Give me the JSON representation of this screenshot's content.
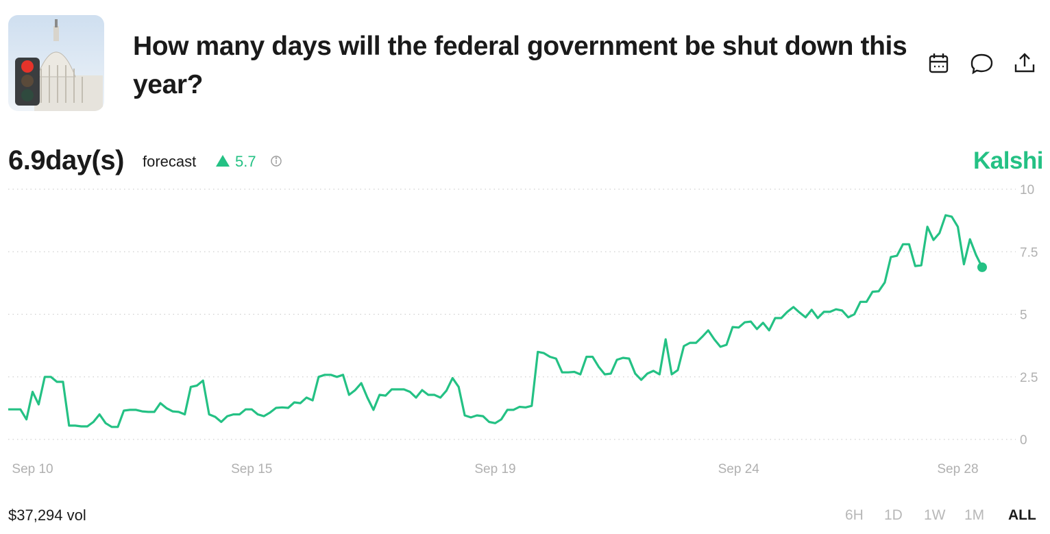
{
  "header": {
    "title": "How many days will the federal government be shut down this year?"
  },
  "forecast": {
    "value": "6.9day(s)",
    "label": "forecast",
    "change": 5.7
  },
  "brand": "Kalshi",
  "chart_data": {
    "type": "line",
    "color": "#24c184",
    "grid": true,
    "ylim": [
      0,
      10
    ],
    "yticks": [
      0,
      2.5,
      5,
      7.5,
      10
    ],
    "categories": [
      null,
      null,
      null,
      null,
      "Sep 10",
      null,
      null,
      null,
      null,
      null,
      null,
      null,
      null,
      null,
      null,
      null,
      null,
      null,
      null,
      null,
      null,
      null,
      null,
      null,
      null,
      null,
      null,
      null,
      null,
      null,
      null,
      null,
      null,
      null,
      null,
      null,
      null,
      null,
      null,
      null,
      "Sep 15",
      null,
      null,
      null,
      null,
      null,
      null,
      null,
      null,
      null,
      null,
      null,
      null,
      null,
      null,
      null,
      null,
      null,
      null,
      null,
      null,
      null,
      null,
      null,
      null,
      null,
      null,
      null,
      null,
      null,
      null,
      null,
      null,
      null,
      null,
      null,
      null,
      null,
      null,
      null,
      "Sep 19",
      null,
      null,
      null,
      null,
      null,
      null,
      null,
      null,
      null,
      null,
      null,
      null,
      null,
      null,
      null,
      null,
      null,
      null,
      null,
      null,
      null,
      null,
      null,
      null,
      null,
      null,
      null,
      null,
      null,
      null,
      null,
      null,
      null,
      null,
      null,
      null,
      null,
      null,
      null,
      "Sep 24",
      null,
      null,
      null,
      null,
      null,
      null,
      null,
      null,
      null,
      null,
      null,
      null,
      null,
      null,
      null,
      null,
      null,
      null,
      null,
      null,
      null,
      null,
      null,
      null,
      null,
      null,
      null,
      null,
      null,
      null,
      null,
      null,
      null,
      null,
      null,
      "Sep 28",
      null,
      null,
      null,
      null
    ],
    "values": [
      1.2,
      1.2,
      1.2,
      0.8,
      1.9,
      1.4,
      2.5,
      2.5,
      2.3,
      2.3,
      0.55,
      0.55,
      0.52,
      0.52,
      0.7,
      1.0,
      0.65,
      0.5,
      0.5,
      1.15,
      1.18,
      1.18,
      1.12,
      1.1,
      1.1,
      1.45,
      1.25,
      1.12,
      1.1,
      1.0,
      2.1,
      2.15,
      2.35,
      1.0,
      0.9,
      0.7,
      0.93,
      1.0,
      1.0,
      1.2,
      1.2,
      1.0,
      0.93,
      1.07,
      1.26,
      1.28,
      1.26,
      1.48,
      1.45,
      1.67,
      1.56,
      2.5,
      2.58,
      2.58,
      2.5,
      2.58,
      1.78,
      1.97,
      2.25,
      1.67,
      1.18,
      1.78,
      1.75,
      2.0,
      2.0,
      2.0,
      1.9,
      1.67,
      1.97,
      1.78,
      1.78,
      1.67,
      1.95,
      2.45,
      2.1,
      0.96,
      0.88,
      0.96,
      0.93,
      0.7,
      0.65,
      0.8,
      1.18,
      1.18,
      1.3,
      1.28,
      1.34,
      3.5,
      3.45,
      3.3,
      3.23,
      2.68,
      2.68,
      2.7,
      2.6,
      3.3,
      3.3,
      2.9,
      2.6,
      2.63,
      3.18,
      3.26,
      3.23,
      2.63,
      2.38,
      2.63,
      2.74,
      2.6,
      4.0,
      2.6,
      2.77,
      3.73,
      3.86,
      3.86,
      4.1,
      4.36,
      4.0,
      3.7,
      3.78,
      4.49,
      4.47,
      4.68,
      4.71,
      4.41,
      4.66,
      4.36,
      4.85,
      4.85,
      5.1,
      5.29,
      5.07,
      4.88,
      5.18,
      4.85,
      5.1,
      5.1,
      5.2,
      5.15,
      4.88,
      5.0,
      5.5,
      5.5,
      5.9,
      5.92,
      6.27,
      7.29,
      7.34,
      7.8,
      7.8,
      6.93,
      6.96,
      8.5,
      7.97,
      8.25,
      8.96,
      8.9,
      8.5,
      7.0,
      8.0,
      7.37,
      6.88
    ]
  },
  "footer": {
    "volume": "$37,294 vol",
    "ranges": [
      "6H",
      "1D",
      "1W",
      "1M",
      "ALL"
    ]
  }
}
